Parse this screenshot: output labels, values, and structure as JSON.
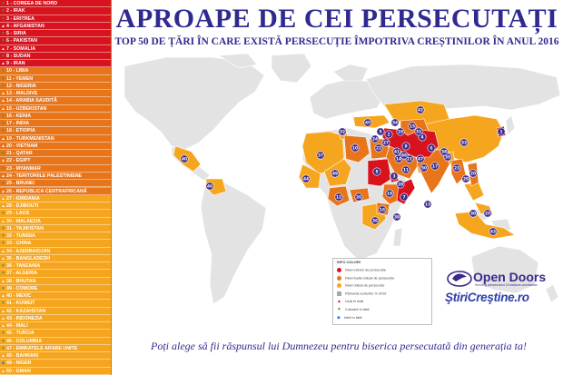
{
  "title": "APROAPE DE CEI PERSECUTAȚI",
  "subtitle": "TOP 50 DE ȚĂRI ÎN CARE EXISTĂ PERSECUȚIE ÎMPOTRIVA CREȘTINILOR ÎN ANUL 2016",
  "tagline": "Poți alege să fii răspunsul lui Dumnezeu pentru biserica persecutată din generația ta!",
  "colors": {
    "title": "#2f2a8f",
    "extreme": "#d7131e",
    "severe": "#e8751a",
    "high": "#f6a51e",
    "marker": "#3c2a8a"
  },
  "countries": [
    {
      "label": "1 - COREEA DE NORD",
      "level": "extreme",
      "marker": "down"
    },
    {
      "label": "2 - IRAK",
      "level": "extreme",
      "marker": "down"
    },
    {
      "label": "3 - ERITREA",
      "level": "extreme",
      "marker": "down"
    },
    {
      "label": "4 - AFGANISTAN",
      "level": "extreme",
      "marker": "up"
    },
    {
      "label": "5 - SIRIA",
      "level": "extreme",
      "marker": "down"
    },
    {
      "label": "6 - PAKISTAN",
      "level": "extreme",
      "marker": "down"
    },
    {
      "label": "7 - SOMALIA",
      "level": "extreme",
      "marker": "up"
    },
    {
      "label": "8 - SUDAN",
      "level": "extreme",
      "marker": "down"
    },
    {
      "label": "9 - IRAN",
      "level": "extreme",
      "marker": "up"
    },
    {
      "label": "10 - LIBIA",
      "level": "severe",
      "marker": "down"
    },
    {
      "label": "11 - YEMEN",
      "level": "severe",
      "marker": "down"
    },
    {
      "label": "12 - NIGERIA",
      "level": "severe",
      "marker": "down"
    },
    {
      "label": "13 - MALDIVE",
      "level": "severe",
      "marker": "up"
    },
    {
      "label": "14 - ARABIA SAUDITĂ",
      "level": "severe",
      "marker": "up"
    },
    {
      "label": "15 - UZBEKISTAN",
      "level": "severe",
      "marker": "up"
    },
    {
      "label": "16 - KENIA",
      "level": "severe",
      "marker": "down"
    },
    {
      "label": "17 - INDIA",
      "level": "severe",
      "marker": "down"
    },
    {
      "label": "18 - ETIOPIA",
      "level": "severe",
      "marker": "down"
    },
    {
      "label": "19 - TURKMENISTAN",
      "level": "severe",
      "marker": "up"
    },
    {
      "label": "20 - VIETNAM",
      "level": "severe",
      "marker": "up"
    },
    {
      "label": "21 - QATAR",
      "level": "severe",
      "marker": "down"
    },
    {
      "label": "22 - EGIPT",
      "level": "severe",
      "marker": "up"
    },
    {
      "label": "23 - MYANMAR",
      "level": "severe",
      "marker": "down"
    },
    {
      "label": "24 - TERITORIILE PALESTINIENE",
      "level": "severe",
      "marker": "up"
    },
    {
      "label": "25 - BRUNEI",
      "level": "severe",
      "marker": "down"
    },
    {
      "label": "26 - REPUBLICA CENTRAFRICANĂ",
      "level": "severe",
      "marker": "up"
    },
    {
      "label": "27 - IORDANIA",
      "level": "high",
      "marker": "up"
    },
    {
      "label": "28 - DJIBOUTI",
      "level": "high",
      "marker": "up"
    },
    {
      "label": "29 - LAOS",
      "level": "high",
      "marker": "down"
    },
    {
      "label": "30 - MALAEZIA",
      "level": "high",
      "marker": "up"
    },
    {
      "label": "31 - TAJIKISTAN",
      "level": "high",
      "marker": "down"
    },
    {
      "label": "32 - TUNISIA",
      "level": "high",
      "marker": "down"
    },
    {
      "label": "33 - CHINA",
      "level": "high",
      "marker": "down"
    },
    {
      "label": "34 - AZERBAIDJAN",
      "level": "high",
      "marker": "up"
    },
    {
      "label": "35 - BANGLADESH",
      "level": "high",
      "marker": "up"
    },
    {
      "label": "36 - TANZANIA",
      "level": "high",
      "marker": "down"
    },
    {
      "label": "37 - ALGERIA",
      "level": "high",
      "marker": "down"
    },
    {
      "label": "38 - BHUTAN",
      "level": "high",
      "marker": "up"
    },
    {
      "label": "39 - COMORE",
      "level": "high",
      "marker": "down"
    },
    {
      "label": "40 - MEXIC",
      "level": "high",
      "marker": "up"
    },
    {
      "label": "41 - KUWEIT",
      "level": "high",
      "marker": "down"
    },
    {
      "label": "42 - KAZAHSTAN",
      "level": "high",
      "marker": "up"
    },
    {
      "label": "43 - INDONEZIA",
      "level": "high",
      "marker": "up"
    },
    {
      "label": "44 - MALI",
      "level": "high",
      "marker": "up"
    },
    {
      "label": "45 - TURCIA",
      "level": "high",
      "marker": "down"
    },
    {
      "label": "46 - COLUMBIA",
      "level": "high",
      "marker": "down"
    },
    {
      "label": "47 - EMIRATELE ARABE UNITE",
      "level": "high",
      "marker": "down"
    },
    {
      "label": "48 - BAHRAIN",
      "level": "high",
      "marker": "up"
    },
    {
      "label": "49 - NIGER",
      "level": "high",
      "marker": "new"
    },
    {
      "label": "50 - OMAN",
      "level": "high",
      "marker": "up"
    }
  ],
  "legend": {
    "title": "INFO CULORI",
    "items": [
      {
        "label": "Nivel extrem de persecuție",
        "color": "#d7131e",
        "shape": "dot"
      },
      {
        "label": "Nivel foarte ridicat de persecuție",
        "color": "#e8751a",
        "shape": "dot"
      },
      {
        "label": "Nivel ridicat de persecuție",
        "color": "#f6a51e",
        "shape": "dot"
      },
      {
        "label": "Pătrunsă ocolurilor în 2016",
        "color": "#a8a8a8",
        "shape": "square"
      },
      {
        "label": "Urcă în listă",
        "color": "#d7131e",
        "shape": "up"
      },
      {
        "label": "Coboară în listă",
        "color": "#3aa040",
        "shape": "down"
      },
      {
        "label": "Intră în listă",
        "color": "#2b7fd6",
        "shape": "new"
      }
    ]
  },
  "logos": {
    "opendoors_name": "Open Doors",
    "opendoors_tagline": "Serving persecuted Christians worldwide",
    "stiri": "ŞtiriCreştine.ro"
  },
  "markers": [
    "1",
    "2",
    "3",
    "4",
    "5",
    "6",
    "7",
    "8",
    "9",
    "10",
    "11",
    "12",
    "13",
    "14",
    "15",
    "16",
    "17",
    "18",
    "19",
    "20",
    "21",
    "22",
    "23",
    "24",
    "25",
    "26",
    "27",
    "28",
    "29",
    "30",
    "31",
    "32",
    "33",
    "34",
    "35",
    "36",
    "37",
    "38",
    "39",
    "40",
    "41",
    "42",
    "43",
    "44",
    "45",
    "46",
    "47",
    "48",
    "49",
    "50"
  ]
}
